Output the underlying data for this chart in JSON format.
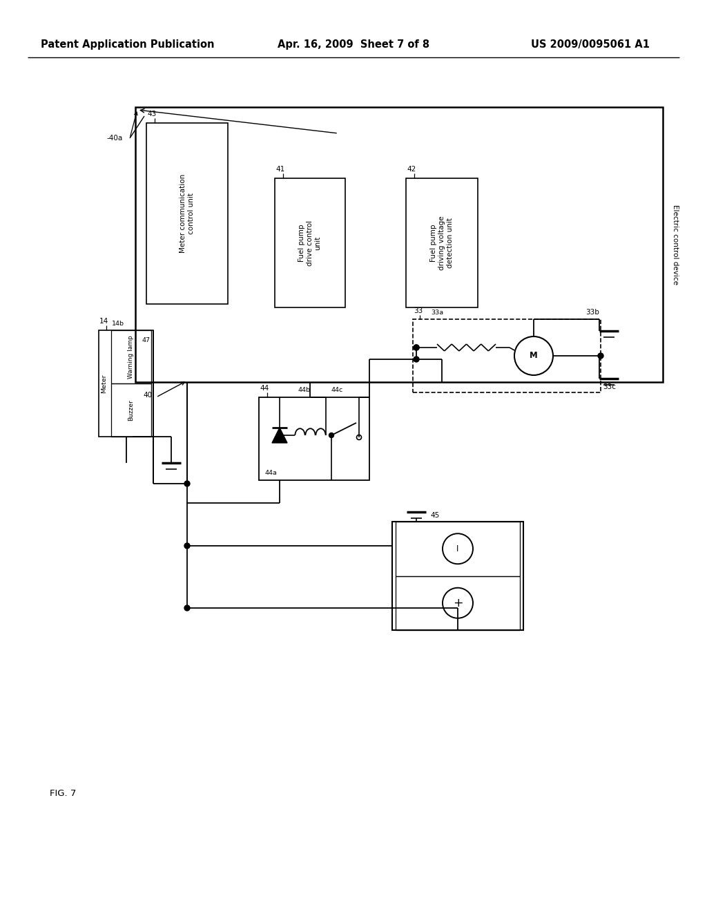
{
  "bg_color": "#ffffff",
  "lc": "#000000",
  "header_left": "Patent Application Publication",
  "header_mid": "Apr. 16, 2009  Sheet 7 of 8",
  "header_right": "US 2009/0095061 A1",
  "fig_label": "FIG. 7",
  "hdr_fs": 10.5,
  "lbl_fs": 8.5,
  "sm_fs": 7.5,
  "tiny_fs": 6.8
}
